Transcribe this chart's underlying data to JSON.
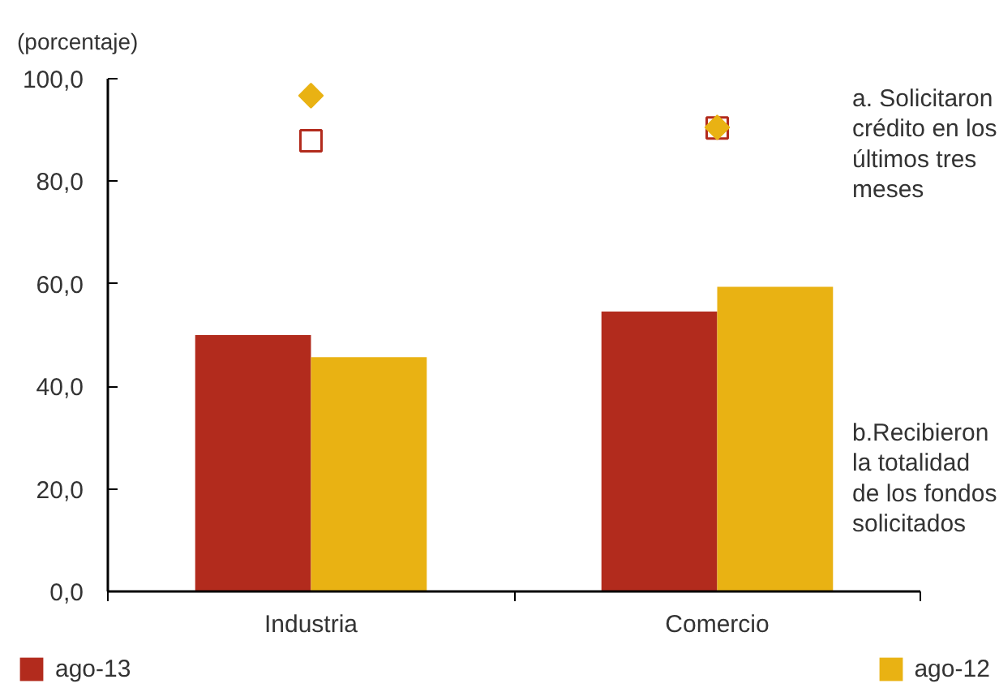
{
  "chart_data": {
    "type": "bar",
    "ylabel": "(porcentaje)",
    "categories": [
      "Industria",
      "Comercio"
    ],
    "series": [
      {
        "name": "ago-13",
        "color": "#b22b1d",
        "values": [
          50.0,
          54.6
        ]
      },
      {
        "name": "ago-12",
        "color": "#e9b213",
        "values": [
          45.7,
          59.4
        ]
      },
      {
        "type": "scatter",
        "color": "#b22b1d",
        "marker": "square",
        "x": [
          "Industria",
          "Comercio"
        ],
        "values": [
          87.9,
          90.4
        ]
      },
      {
        "type": "scatter",
        "color": "#e9b213",
        "marker": "diamond",
        "x": [
          "Industria",
          "Comercio"
        ],
        "values": [
          96.7,
          90.5
        ]
      }
    ],
    "ylim": [
      0,
      100
    ],
    "yticks": [
      {
        "value": 0,
        "label": "0,0"
      },
      {
        "value": 20,
        "label": "20,0"
      },
      {
        "value": 40,
        "label": "40,0"
      },
      {
        "value": 60,
        "label": "60,0"
      },
      {
        "value": 80,
        "label": "80,0"
      },
      {
        "value": 100,
        "label": "100,0"
      }
    ],
    "annotations": [
      "a. Solicitaron\ncrédito en los\núltimos tres\nmeses",
      "b.Recibieron\nla totalidad\nde los fondos\nsolicitados"
    ],
    "legend": "bottom"
  }
}
